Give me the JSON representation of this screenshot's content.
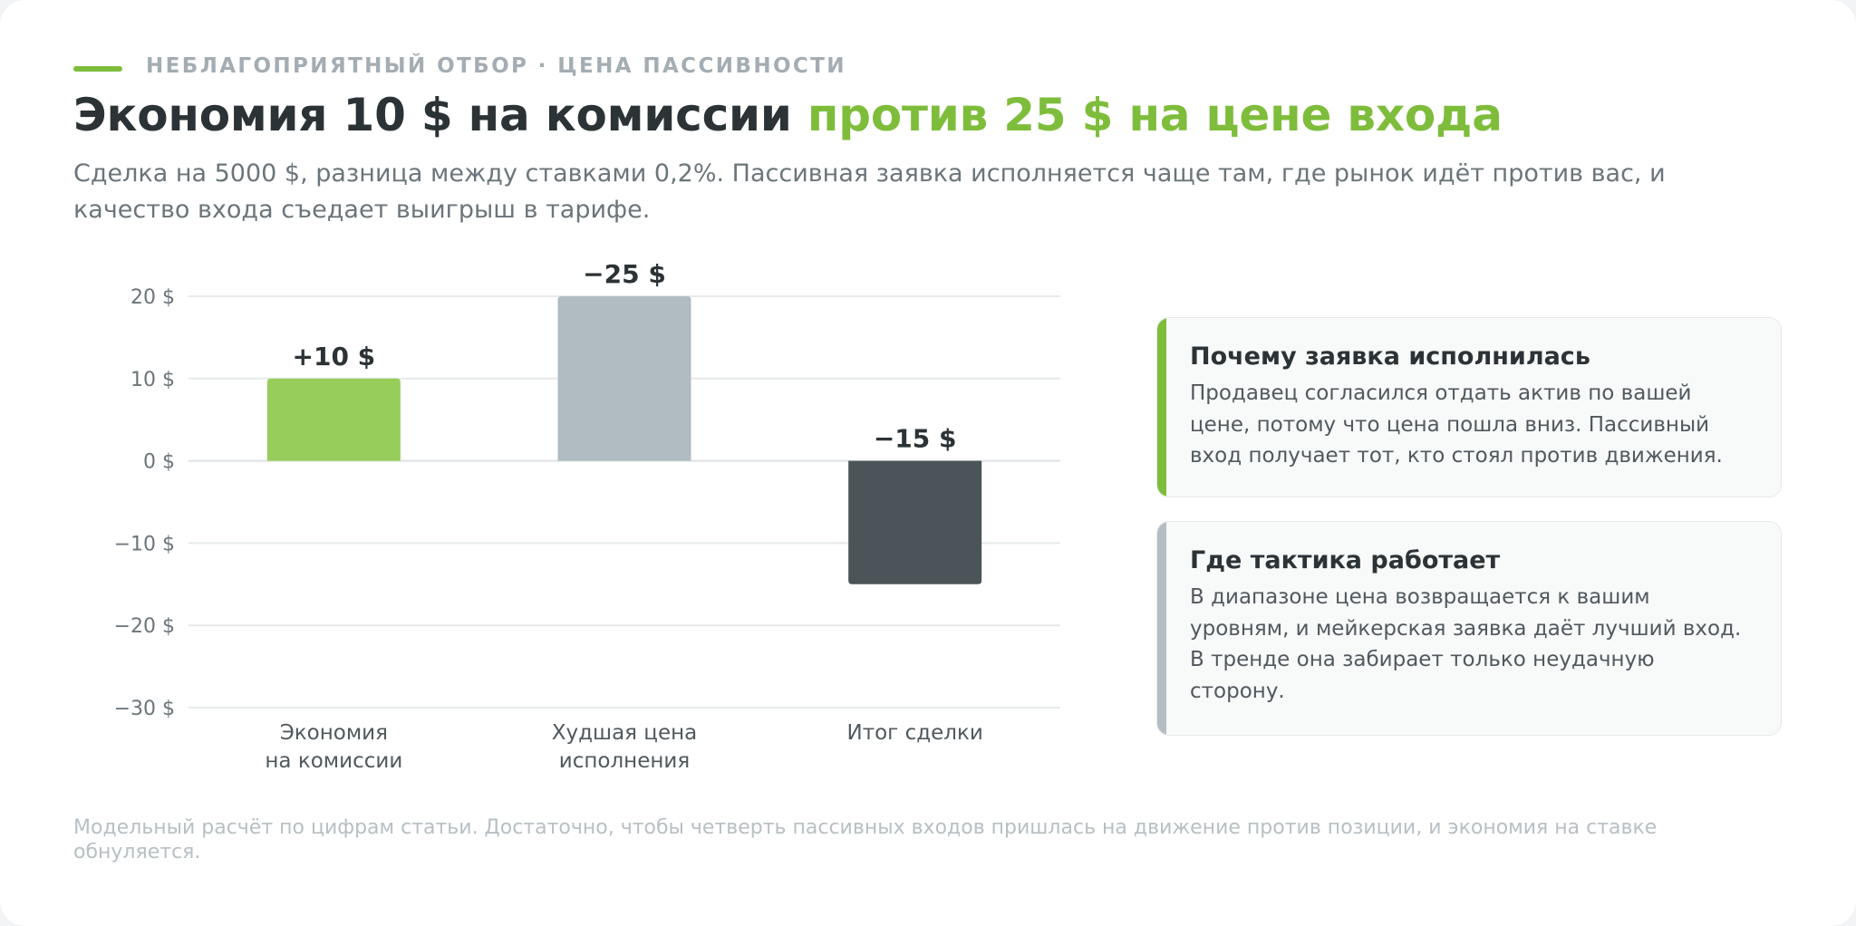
{
  "colors": {
    "accent_green": "#7ebd3b",
    "bar_green": "#96cd5b",
    "bar_gray": "#b0bcc2",
    "bar_dark": "#4b5458",
    "title_dark": "#2c3336",
    "side_accent_gray": "#b4bec3"
  },
  "header": {
    "eyebrow": "НЕБЛАГОПРИЯТНЫЙ ОТБОР · ЦЕНА ПАССИВНОСТИ",
    "title_part1": "Экономия 10 $ на комиссии ",
    "title_part2": "против 25 $ на цене входа",
    "subtitle": "Сделка на 5000 $, разница между ставками 0,2%. Пассивная заявка исполняется чаще там, где рынок идёт против вас, и качество входа съедает выигрыш в тарифе."
  },
  "chart_data": {
    "type": "bar",
    "categories": [
      [
        "Экономия",
        "на комиссии"
      ],
      [
        "Худшая цена",
        "исполнения"
      ],
      [
        "Итог сделки"
      ]
    ],
    "values": [
      10,
      -25,
      -15
    ],
    "value_labels": [
      "+10 $",
      "−25 $",
      "−15 $"
    ],
    "bar_colors": [
      "#96cd5b",
      "#b0bcc2",
      "#4b5458"
    ],
    "bar_direction": [
      "up",
      "up",
      "down"
    ],
    "ylim": [
      -30,
      20
    ],
    "yticks": [
      20,
      10,
      0,
      -10,
      -20,
      -30
    ],
    "ytick_labels": [
      "20 $",
      "10 $",
      "0 $",
      "−10 $",
      "−20 $",
      "−30 $"
    ],
    "grid": true,
    "title": "",
    "xlabel": "",
    "ylabel": ""
  },
  "side_cards": [
    {
      "title": "Почему заявка исполнилась",
      "text": "Продавец согласился отдать актив по вашей цене, потому что цена пошла вниз. Пассивный вход получает тот, кто стоял против движения."
    },
    {
      "title": "Где тактика работает",
      "text": "В диапазоне цена возвращается к вашим уровням, и мейкерская заявка даёт лучший вход. В тренде она забирает только неудачную сторону."
    }
  ],
  "footnote": "Модельный расчёт по цифрам статьи. Достаточно, чтобы четверть пассивных входов пришлась на движение против позиции, и экономия на ставке обнуляется."
}
